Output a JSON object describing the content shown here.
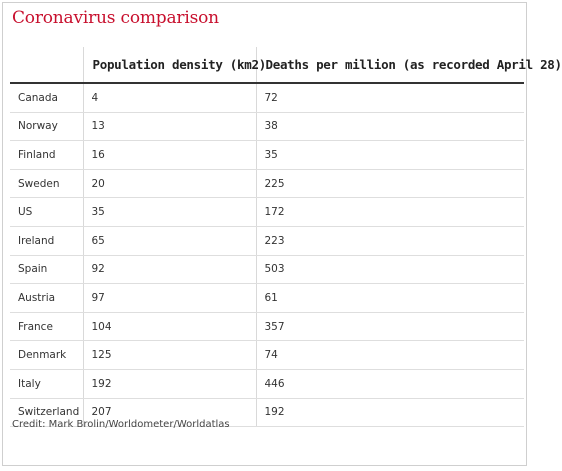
{
  "title": "Coronavirus comparison",
  "credit": "Credit: Mark Brolin/Worldometer/Worldatlas",
  "chart_data": {
    "type": "table",
    "title": "Coronavirus comparison",
    "columns": [
      "",
      "Population density (km2)",
      "Deaths per million (as recorded April 28)"
    ],
    "rows": [
      {
        "country": "Canada",
        "density": "4",
        "deaths": "72"
      },
      {
        "country": "Norway",
        "density": "13",
        "deaths": "38"
      },
      {
        "country": "Finland",
        "density": "16",
        "deaths": "35"
      },
      {
        "country": "Sweden",
        "density": "20",
        "deaths": "225"
      },
      {
        "country": "US",
        "density": "35",
        "deaths": "172"
      },
      {
        "country": "Ireland",
        "density": "65",
        "deaths": "223"
      },
      {
        "country": "Spain",
        "density": "92",
        "deaths": "503"
      },
      {
        "country": "Austria",
        "density": "97",
        "deaths": "61"
      },
      {
        "country": "France",
        "density": "104",
        "deaths": "357"
      },
      {
        "country": "Denmark",
        "density": "125",
        "deaths": "74"
      },
      {
        "country": "Italy",
        "density": "192",
        "deaths": "446"
      },
      {
        "country": "Switzerland",
        "density": "207",
        "deaths": "192"
      }
    ]
  }
}
